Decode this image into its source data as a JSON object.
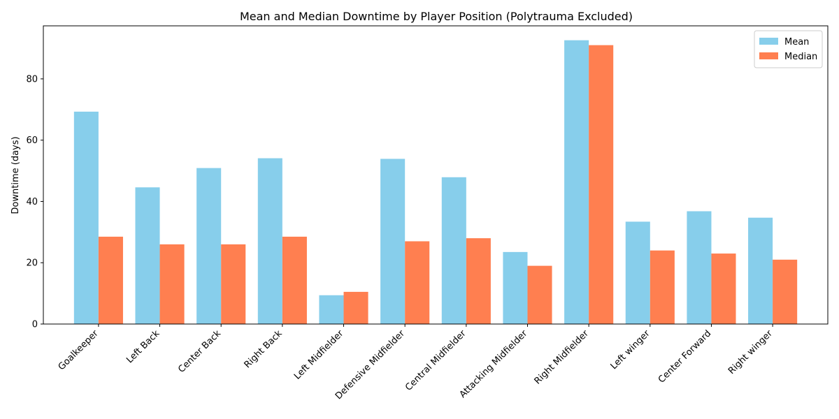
{
  "chart_data": {
    "type": "bar",
    "title": "Mean and Median Downtime by Player Position (Polytrauma Excluded)",
    "xlabel": "",
    "ylabel": "Downtime (days)",
    "categories": [
      "Goalkeeper",
      "Left Back",
      "Center Back",
      "Right Back",
      "Left Midfielder",
      "Defensive Midfielder",
      "Central Midfielder",
      "Attacking Midfielder",
      "Right Midfielder",
      "Left winger",
      "Center Forward",
      "Right winger"
    ],
    "series": [
      {
        "name": "Mean",
        "color": "#87CEEB",
        "values": [
          69.3,
          44.6,
          50.9,
          54.1,
          9.4,
          53.9,
          47.9,
          23.5,
          92.6,
          33.4,
          36.8,
          34.7
        ]
      },
      {
        "name": "Median",
        "color": "#FF7F50",
        "values": [
          28.5,
          26.0,
          26.0,
          28.5,
          10.5,
          27.0,
          28.0,
          19.0,
          91.0,
          24.0,
          23.0,
          21.0
        ]
      }
    ],
    "ylim": [
      0,
      97.3
    ],
    "yticks": [
      0,
      20,
      40,
      60,
      80
    ],
    "grid": false,
    "legend": "top-right"
  }
}
